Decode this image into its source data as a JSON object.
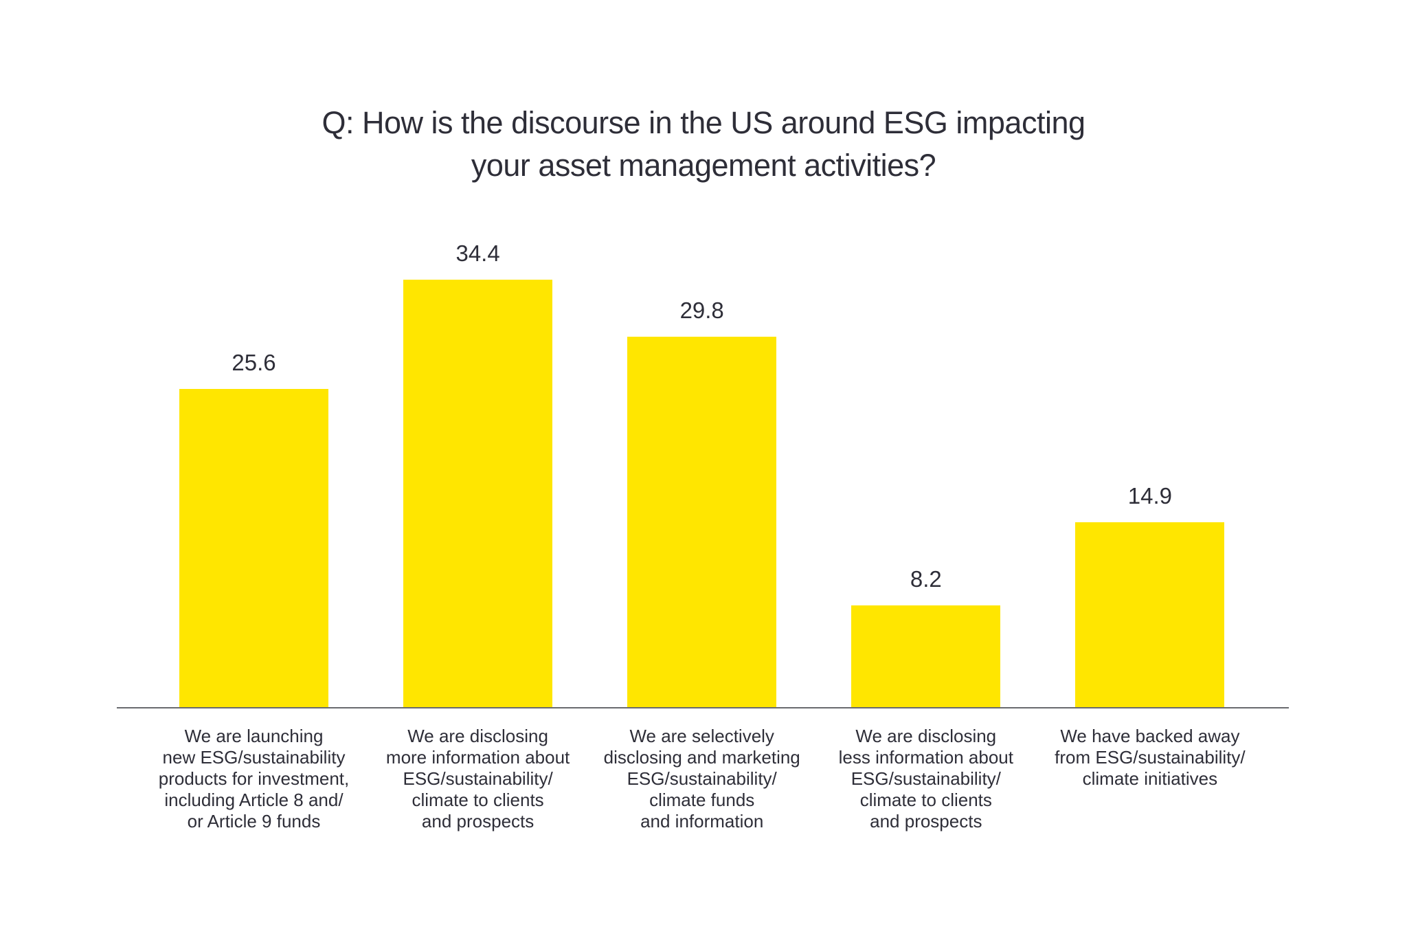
{
  "page": {
    "background_color": "#ffffff"
  },
  "chart_data": {
    "type": "bar",
    "title": "Q: How is the discourse in the US around ESG impacting\nyour asset management activities?",
    "categories": [
      "We are launching\nnew ESG/sustainability\nproducts for investment,\nincluding Article 8 and/\nor Article 9 funds",
      "We are disclosing\nmore information about\nESG/sustainability/\nclimate to clients\nand prospects",
      "We are selectively\ndisclosing and marketing\nESG/sustainability/\nclimate funds\nand information",
      "We are disclosing\nless information about\nESG/sustainability/\nclimate to clients\nand prospects",
      "We have backed away\nfrom ESG/sustainability/\nclimate initiatives"
    ],
    "values": [
      25.6,
      34.4,
      29.8,
      8.2,
      14.9
    ],
    "value_labels": [
      "25.6",
      "34.4",
      "29.8",
      "8.2",
      "14.9"
    ],
    "xlabel": "",
    "ylabel": "",
    "ylim": [
      0,
      36
    ],
    "grid": false,
    "legend": false,
    "y_axis_visible": false,
    "bar_color": "#ffe600",
    "text_color": "#2e2e38",
    "axis_line_color": "#696a6e"
  }
}
